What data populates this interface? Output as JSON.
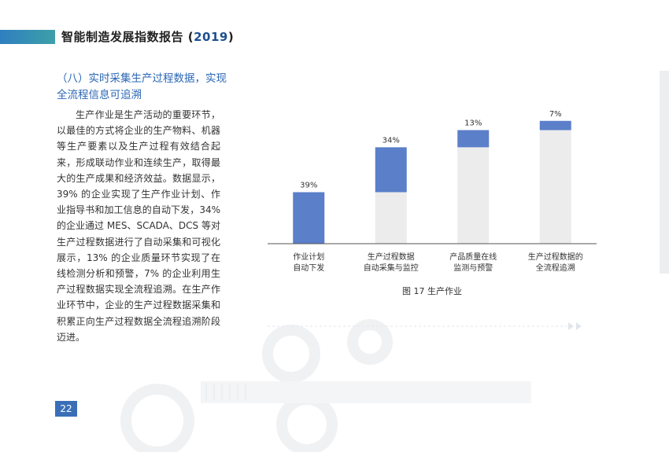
{
  "header": {
    "title": "智能制造发展指数报告 (",
    "year": "2019",
    "close": ")"
  },
  "section": {
    "heading": "（八）实时采集生产过程数据，实现全流程信息可追溯"
  },
  "body": {
    "paragraph": "生产作业是生产活动的重要环节，以最佳的方式将企业的生产物料、机器等生产要素以及生产过程有效结合起来，形成联动作业和连续生产，取得最大的生产成果和经济效益。数据显示，39% 的企业实现了生产作业计划、作业指导书和加工信息的自动下发，34% 的企业通过 MES、SCADA、DCS 等对生产过程数据进行了自动采集和可视化展示，13% 的企业质量环节实现了在线检测分析和预警，7% 的企业利用生产过程数据实现全流程追溯。在生产作业环节中，企业的生产过程数据采集和积累正向生产过程数据全流程追溯阶段迈进。"
  },
  "chart_data": {
    "type": "bar",
    "categories": [
      [
        "作业计划",
        "自动下发"
      ],
      [
        "生产过程数据",
        "自动采集与监控"
      ],
      [
        "产品质量在线",
        "监测与预警"
      ],
      [
        "生产过程数据的",
        "全流程追溯"
      ]
    ],
    "values": [
      39,
      34,
      13,
      7
    ],
    "data_labels": [
      "39%",
      "34%",
      "13%",
      "7%"
    ],
    "stacked_base": [
      0,
      39,
      73,
      86
    ],
    "ylim": [
      0,
      100
    ],
    "colors": {
      "value": "#5b7fc9",
      "base": "#ececec"
    }
  },
  "caption": "图 17  生产作业",
  "page_number": "22"
}
